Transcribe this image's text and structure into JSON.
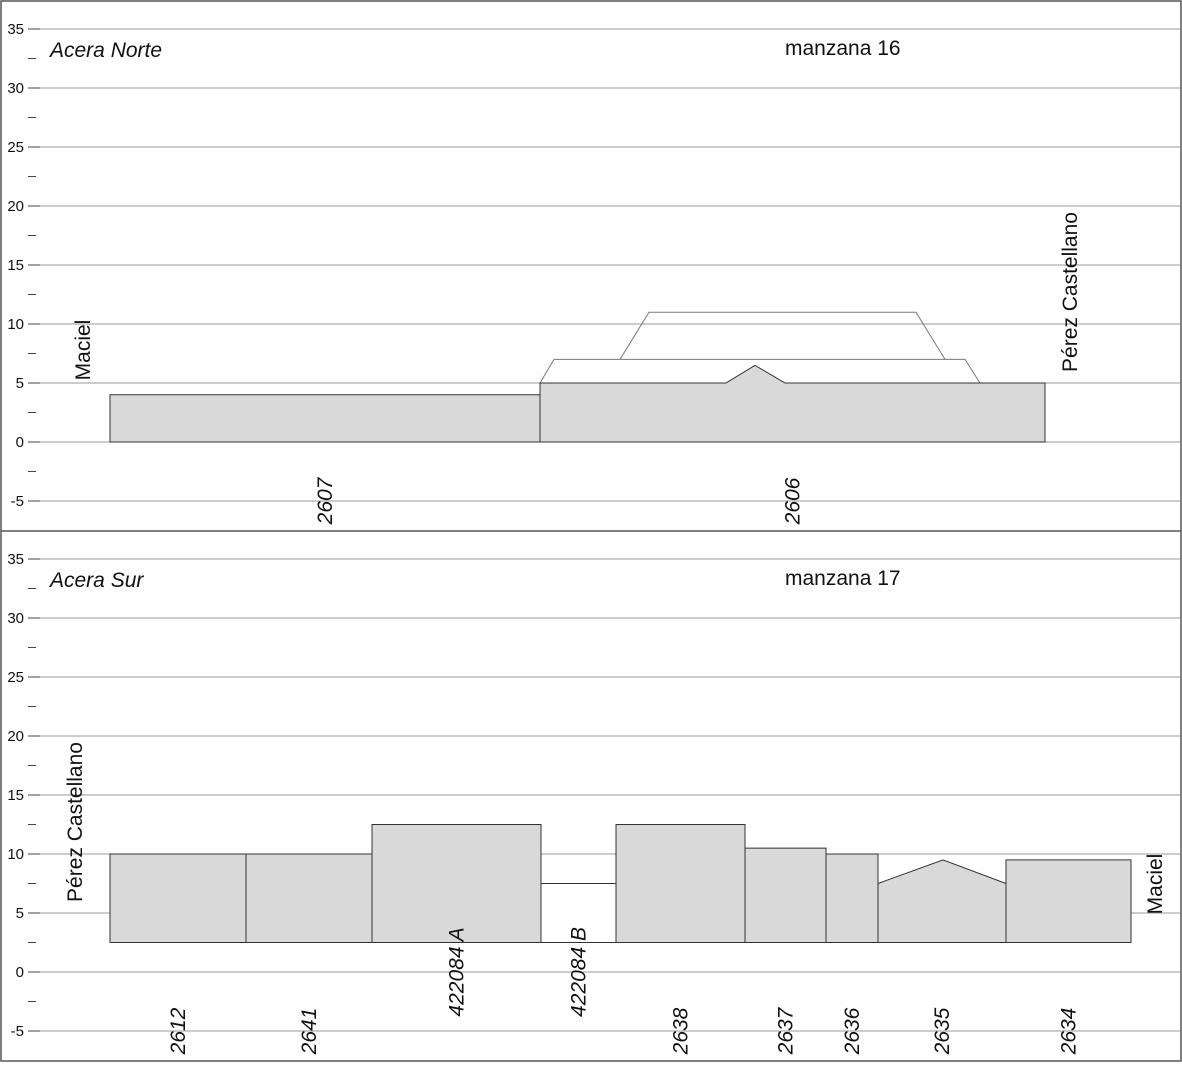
{
  "y_axis": {
    "ticks": [
      35,
      30,
      25,
      20,
      15,
      10,
      5,
      0,
      -5
    ],
    "tick_labels": [
      "35",
      "30",
      "25",
      "20",
      "15",
      "10",
      "5",
      "0",
      "-5"
    ],
    "range": [
      -7.5,
      37.5
    ],
    "minor_step": 2.5
  },
  "colors": {
    "building_fill": "#d9d9d9",
    "building_stroke": "#333333",
    "outline_stroke": "#777777",
    "grid": "#9a9a9a",
    "frame": "#555555"
  },
  "panels": [
    {
      "title": "Acera Norte",
      "block": "manzana 16",
      "left_street": "Maciel",
      "right_street": "Pérez Castellano",
      "lot_label_y": -5,
      "lots": [
        {
          "id": "2607",
          "base": 0,
          "polygon": [
            [
              0,
              4
            ],
            [
              43,
              4
            ]
          ]
        },
        {
          "id": "2606",
          "base": 0,
          "polygon": [
            [
              43,
              5
            ],
            [
              61.6,
              5
            ],
            [
              64.5,
              6.5
            ],
            [
              67.5,
              5
            ],
            [
              93.5,
              5
            ]
          ]
        }
      ],
      "outlines": [
        {
          "points": [
            [
              43,
              5
            ],
            [
              44.4,
              7
            ],
            [
              85.5,
              7
            ],
            [
              87,
              5
            ]
          ]
        },
        {
          "points": [
            [
              51,
              7
            ],
            [
              53.9,
              11
            ],
            [
              80.6,
              11
            ],
            [
              83.5,
              7
            ]
          ]
        }
      ]
    },
    {
      "title": "Acera Sur",
      "block": "manzana 17",
      "left_street": "Pérez Castellano",
      "right_street": "Maciel",
      "lot_label_y": -5,
      "lots": [
        {
          "id": "2612",
          "base": 2.5,
          "polygon": [
            [
              0,
              10
            ],
            [
              13.6,
              10
            ]
          ]
        },
        {
          "id": "2641",
          "base": 2.5,
          "polygon": [
            [
              13.6,
              10
            ],
            [
              26.2,
              10
            ]
          ]
        },
        {
          "id": "422084 A",
          "base": 2.5,
          "label_y": 0,
          "polygon": [
            [
              26.2,
              12.5
            ],
            [
              43.1,
              12.5
            ]
          ]
        },
        {
          "id": "422084 B",
          "base": 2.5,
          "label_y": 0,
          "unfilled": true,
          "polygon": [
            [
              43.1,
              7.5
            ],
            [
              50.6,
              7.5
            ]
          ]
        },
        {
          "id": "2638",
          "base": 2.5,
          "polygon": [
            [
              50.6,
              12.5
            ],
            [
              63.5,
              12.5
            ]
          ]
        },
        {
          "id": "2637",
          "base": 2.5,
          "polygon": [
            [
              63.5,
              10.5
            ],
            [
              71.6,
              10.5
            ]
          ]
        },
        {
          "id": "2636",
          "base": 2.5,
          "polygon": [
            [
              71.6,
              10
            ],
            [
              76.8,
              10
            ]
          ]
        },
        {
          "id": "2635",
          "base": 2.5,
          "polygon": [
            [
              76.8,
              7.5
            ],
            [
              83.3,
              9.5
            ],
            [
              89.6,
              7.5
            ]
          ]
        },
        {
          "id": "2634",
          "base": 2.5,
          "polygon": [
            [
              89.6,
              9.5
            ],
            [
              102.1,
              9.5
            ]
          ]
        }
      ],
      "outlines": []
    }
  ]
}
